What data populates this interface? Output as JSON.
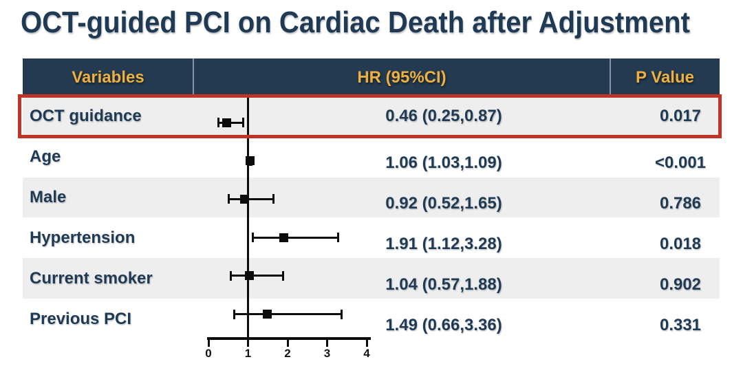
{
  "title": "OCT-guided PCI on Cardiac Death after Adjustment",
  "colors": {
    "header_background": "#243a50",
    "header_text_gold": "#eeb040",
    "body_text_navy": "#1f3a55",
    "row_stripe_gray": "#eeeeee",
    "row_white": "#ffffff",
    "highlight_red": "#c03428",
    "plot_black": "#0c0c0c"
  },
  "table": {
    "headers": {
      "variables": "Variables",
      "hr": "HR (95%CI)",
      "p": "P Value"
    },
    "rows": [
      {
        "variable": "OCT guidance",
        "hr_text": "0.46 (0.25,0.87)",
        "p_value": "0.017",
        "highlighted": true
      },
      {
        "variable": "Age",
        "hr_text": "1.06 (1.03,1.09)",
        "p_value": "<0.001",
        "highlighted": false
      },
      {
        "variable": "Male",
        "hr_text": "0.92 (0.52,1.65)",
        "p_value": "0.786",
        "highlighted": false
      },
      {
        "variable": "Hypertension",
        "hr_text": "1.91 (1.12,3.28)",
        "p_value": "0.018",
        "highlighted": false
      },
      {
        "variable": "Current smoker",
        "hr_text": "1.04 (0.57,1.88)",
        "p_value": "0.902",
        "highlighted": false
      },
      {
        "variable": "Previous PCI",
        "hr_text": "1.49 (0.66,3.36)",
        "p_value": "0.331",
        "highlighted": false
      }
    ]
  },
  "chart_data": {
    "type": "scatter",
    "subtype": "forest-plot",
    "title": "OCT-guided PCI on Cardiac Death after Adjustment",
    "categories": [
      "OCT guidance",
      "Age",
      "Male",
      "Hypertension",
      "Current smoker",
      "Previous PCI"
    ],
    "series": [
      {
        "name": "HR (95%CI)",
        "values": [
          0.46,
          1.06,
          0.92,
          1.91,
          1.04,
          1.49
        ],
        "ci_lower": [
          0.25,
          1.03,
          0.52,
          1.12,
          0.57,
          0.66
        ],
        "ci_upper": [
          0.87,
          1.09,
          1.65,
          3.28,
          1.88,
          3.36
        ]
      }
    ],
    "p_values": [
      "0.017",
      "<0.001",
      "0.786",
      "0.018",
      "0.902",
      "0.331"
    ],
    "xlabel": "",
    "ylabel": "",
    "xlim": [
      0,
      4
    ],
    "x_ticks": [
      0,
      1,
      2,
      3,
      4
    ],
    "reference_line": 1,
    "marker": "square",
    "grid": false,
    "legend_position": "none"
  }
}
